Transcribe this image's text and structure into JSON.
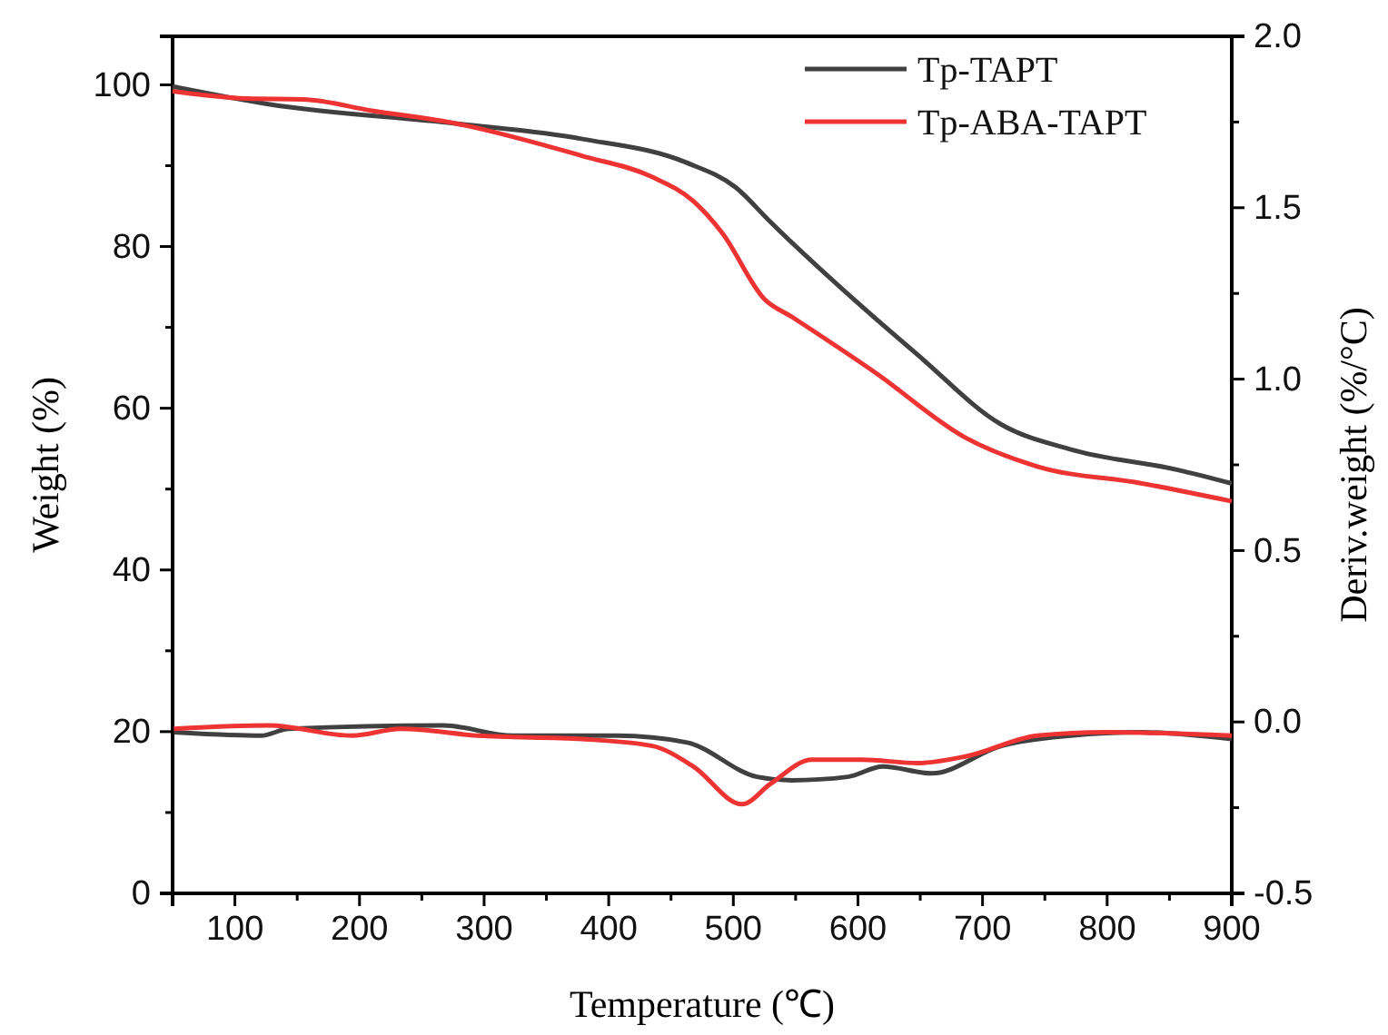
{
  "chart_data": {
    "type": "line",
    "xlabel": "Temperature (℃)",
    "ylabel": "Weight (%)",
    "y2label": "Deriv.weight (%/°C)",
    "xlim": [
      50,
      900
    ],
    "xticks": [
      100,
      200,
      300,
      400,
      500,
      600,
      700,
      800,
      900
    ],
    "ylim": [
      0,
      106
    ],
    "yticks": [
      0,
      20,
      40,
      60,
      80,
      100
    ],
    "y2lim": [
      -0.5,
      2.0
    ],
    "y2ticks": [
      {
        "value": -0.5,
        "label": "-0.5"
      },
      {
        "value": 0,
        "label": "0.0"
      },
      {
        "value": 0.5,
        "label": "0.5"
      },
      {
        "value": 1,
        "label": "1.0"
      },
      {
        "value": 1.5,
        "label": "1.5"
      },
      {
        "value": 2,
        "label": "2.0"
      }
    ],
    "legend": "top right",
    "grid": false,
    "marker": "none",
    "line_style": "solid",
    "series": [
      {
        "name": "Tp-TAPT",
        "color": "#404040",
        "x": [
          50,
          127,
          278,
          379,
          462,
          502,
          530,
          603,
          648,
          715,
          771,
          856,
          900
        ],
        "values": [
          99.8,
          97.6,
          95.2,
          93.3,
          90.4,
          87.3,
          83.0,
          72.6,
          66.6,
          58.0,
          54.9,
          52.4,
          50.7
        ]
      },
      {
        "name": "Tp-ABA-TAPT",
        "color": "#ee3333",
        "x": [
          50,
          110,
          155,
          210,
          278,
          379,
          435,
          468,
          491,
          525,
          547,
          614,
          687,
          744,
          828,
          900
        ],
        "values": [
          99.2,
          98.3,
          98.2,
          96.8,
          95.2,
          91.2,
          88.6,
          85.6,
          81.7,
          73.5,
          71.3,
          64.4,
          56.3,
          52.8,
          50.7,
          48.5
        ]
      },
      {
        "color": "#404040",
        "axis": "y2",
        "x": [
          51,
          121,
          143,
          267,
          323,
          407,
          463,
          519,
          547,
          592,
          620,
          659,
          715,
          771,
          827,
          900
        ],
        "values": [
          -0.03,
          -0.04,
          -0.02,
          -0.01,
          -0.04,
          -0.04,
          -0.06,
          -0.16,
          -0.17,
          -0.16,
          -0.13,
          -0.15,
          -0.07,
          -0.04,
          -0.03,
          -0.05
        ]
      },
      {
        "color": "#ee3333",
        "axis": "y2",
        "x": [
          51,
          127,
          194,
          233,
          295,
          379,
          435,
          468,
          507,
          530,
          563,
          603,
          648,
          687,
          744,
          799,
          900
        ],
        "values": [
          -0.02,
          -0.01,
          -0.04,
          -0.02,
          -0.04,
          -0.05,
          -0.07,
          -0.13,
          -0.24,
          -0.18,
          -0.11,
          -0.11,
          -0.12,
          -0.1,
          -0.04,
          -0.03,
          -0.04
        ]
      }
    ]
  }
}
